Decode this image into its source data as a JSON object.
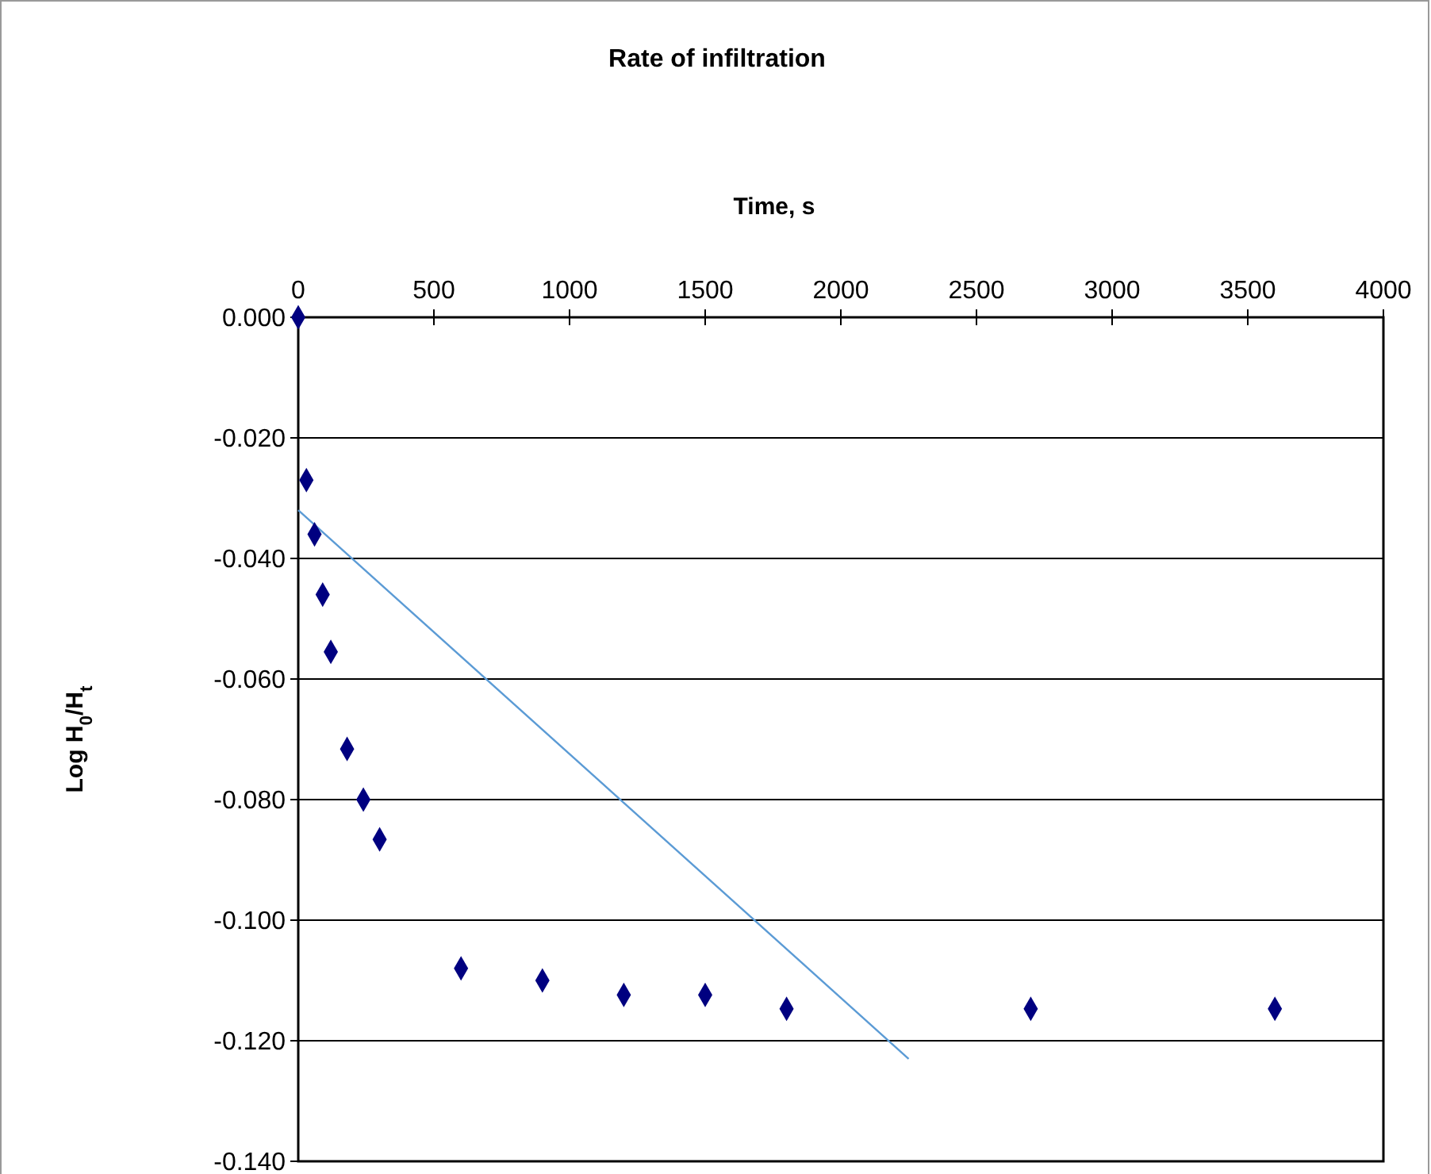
{
  "chart_data": {
    "type": "scatter",
    "title": "Rate of infiltration",
    "xlabel": "Time, s",
    "ylabel": "Log H$_{0}$/H$_{t}$",
    "xlim": [
      0,
      4000
    ],
    "xticks": [
      0,
      500,
      1000,
      1500,
      2000,
      2500,
      3000,
      3500,
      4000
    ],
    "ylim": [
      -0.14,
      0
    ],
    "yticks": [
      {
        "value": 0,
        "label": "0.000"
      },
      {
        "value": -0.02,
        "label": "-0.020"
      },
      {
        "value": -0.04,
        "label": "-0.040"
      },
      {
        "value": -0.06,
        "label": "-0.060"
      },
      {
        "value": -0.08,
        "label": "-0.080"
      },
      {
        "value": -0.1,
        "label": "-0.100"
      },
      {
        "value": -0.12,
        "label": "-0.120"
      },
      {
        "value": -0.14,
        "label": "-0.140"
      }
    ],
    "grid": "y",
    "series": [
      {
        "marker": "diamond",
        "color": "#000080",
        "x": [
          0,
          30,
          60,
          90,
          120,
          180,
          240,
          300,
          600,
          900,
          1200,
          1500,
          1800,
          2700,
          3600
        ],
        "values": [
          0,
          -0.027,
          -0.036,
          -0.046,
          -0.0555,
          -0.0716,
          -0.08,
          -0.0866,
          -0.108,
          -0.11,
          -0.1124,
          -0.1124,
          -0.1147,
          -0.1147,
          -0.1147
        ]
      },
      {
        "type": "line",
        "marker": "none",
        "color": "#5b9bd5",
        "x": [
          0,
          2250
        ],
        "values": [
          -0.032,
          -0.123
        ]
      }
    ]
  }
}
